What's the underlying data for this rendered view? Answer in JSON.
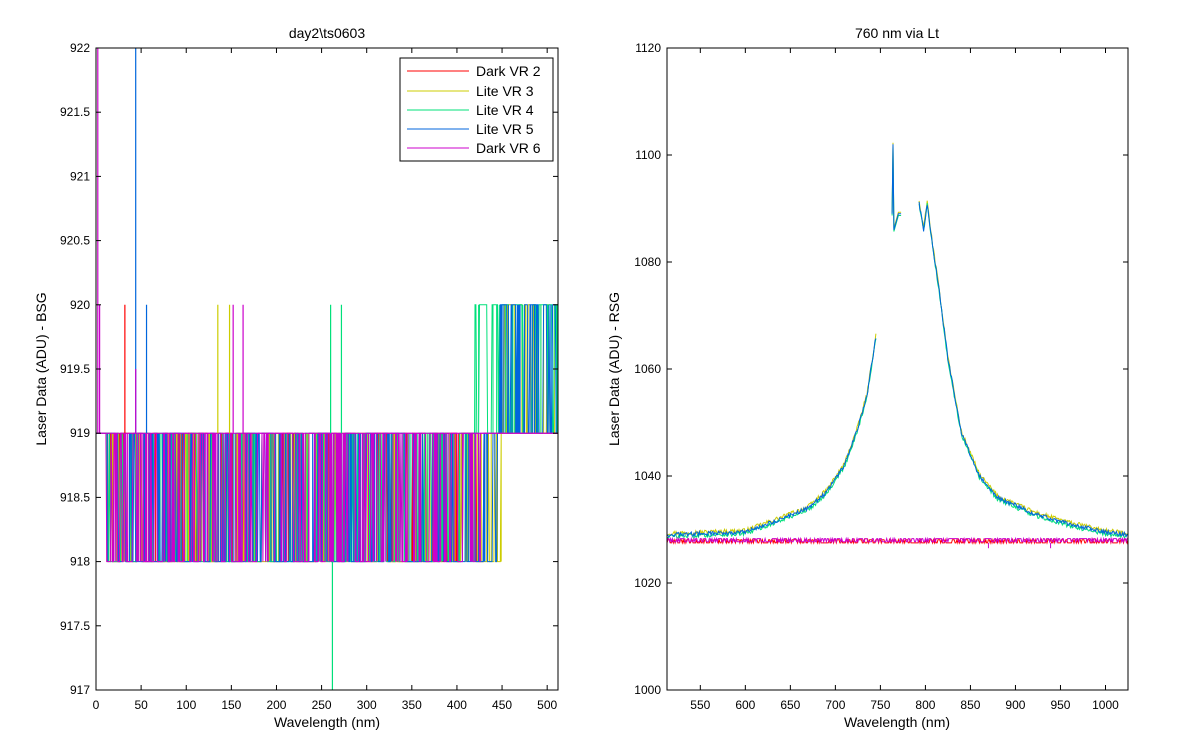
{
  "colors": {
    "dark_vr_2": "#ff0000",
    "lite_vr_3": "#cccc00",
    "lite_vr_4": "#00e07a",
    "lite_vr_5": "#0066dd",
    "dark_vr_6": "#cc00cc",
    "axes": "#000000",
    "background": "#ffffff"
  },
  "chart_data": [
    {
      "type": "line",
      "title": "day2\\ts0603",
      "xlabel": "Wavelength (nm)",
      "ylabel": "Laser Data (ADU) - BSG",
      "xlim": [
        0,
        512
      ],
      "ylim": [
        917,
        922
      ],
      "xticks": [
        "0",
        "50",
        "100",
        "150",
        "200",
        "250",
        "300",
        "350",
        "400",
        "450",
        "500"
      ],
      "yticks": [
        "917",
        "917.5",
        "918",
        "918.5",
        "919",
        "919.5",
        "920",
        "920.5",
        "921",
        "921.5",
        "922"
      ],
      "legend_position": "top-right",
      "series": [
        {
          "name": "Dark VR 2",
          "color_key": "dark_vr_2",
          "seed": 11,
          "min": 918,
          "max": 919,
          "flip_density": 0.18,
          "high_after": null
        },
        {
          "name": "Lite VR 3",
          "color_key": "lite_vr_3",
          "seed": 23,
          "min": 918,
          "max": 919,
          "flip_density": 0.22,
          "high_after": 450
        },
        {
          "name": "Lite VR 4",
          "color_key": "lite_vr_4",
          "seed": 37,
          "min": 918,
          "max": 919,
          "flip_density": 0.2,
          "high_after": 420
        },
        {
          "name": "Lite VR 5",
          "color_key": "lite_vr_5",
          "seed": 41,
          "min": 918,
          "max": 919,
          "flip_density": 0.2,
          "high_after": 445
        },
        {
          "name": "Dark VR 6",
          "color_key": "dark_vr_6",
          "seed": 53,
          "min": 918,
          "max": 919,
          "flip_density": 0.24,
          "high_after": null
        }
      ],
      "spikes": [
        {
          "series": "Lite VR 5",
          "x": 44,
          "y_from": 919,
          "y_to": 922
        },
        {
          "series": "Dark VR 6",
          "x": 44,
          "y_from": 919,
          "y_to": 919.5
        },
        {
          "series": "Lite VR 4",
          "x": 262,
          "y_from": 918,
          "y_to": 917
        },
        {
          "series": "Lite VR 4",
          "x": 260,
          "y_from": 919,
          "y_to": 920
        },
        {
          "series": "Lite VR 4",
          "x": 272,
          "y_from": 919,
          "y_to": 920
        },
        {
          "series": "Lite VR 3",
          "x": 135,
          "y_from": 919,
          "y_to": 920
        },
        {
          "series": "Lite VR 3",
          "x": 148,
          "y_from": 919,
          "y_to": 920
        },
        {
          "series": "Dark VR 6",
          "x": 152,
          "y_from": 919,
          "y_to": 920
        },
        {
          "series": "Dark VR 6",
          "x": 163,
          "y_from": 919,
          "y_to": 920
        },
        {
          "series": "Dark VR 2",
          "x": 32,
          "y_from": 919,
          "y_to": 920
        },
        {
          "series": "Lite VR 5",
          "x": 56,
          "y_from": 919,
          "y_to": 920
        },
        {
          "series": "Dark VR 6",
          "x": 2,
          "y_from": 919,
          "y_to": 922
        },
        {
          "series": "Dark VR 6",
          "x": 4,
          "y_from": 919,
          "y_to": 920
        }
      ]
    },
    {
      "type": "line",
      "title": "760 nm via Lt",
      "xlabel": "Wavelength (nm)",
      "ylabel": "Laser Data (ADU) - RSG",
      "xlim": [
        513,
        1025
      ],
      "ylim": [
        1000,
        1120
      ],
      "xticks": [
        "550",
        "600",
        "650",
        "700",
        "750",
        "800",
        "850",
        "900",
        "950",
        "1000"
      ],
      "yticks": [
        "1000",
        "1020",
        "1040",
        "1060",
        "1080",
        "1100",
        "1120"
      ],
      "series": [
        {
          "name": "Lite VR 3",
          "color_key": "lite_vr_3",
          "baseline": 1029,
          "offset": 0.3
        },
        {
          "name": "Lite VR 4",
          "color_key": "lite_vr_4",
          "baseline": 1029,
          "offset": -0.3
        },
        {
          "name": "Lite VR 5",
          "color_key": "lite_vr_5",
          "baseline": 1029,
          "offset": 0
        },
        {
          "name": "Dark VR 2",
          "color_key": "dark_vr_2",
          "baseline": 1027.5,
          "offset": 0
        },
        {
          "name": "Dark VR 6",
          "color_key": "dark_vr_6",
          "baseline": 1027.5,
          "offset": 0.2
        }
      ],
      "peak": {
        "left_rise": [
          [
            513,
            1029
          ],
          [
            600,
            1029.5
          ],
          [
            640,
            1032
          ],
          [
            670,
            1034
          ],
          [
            690,
            1037
          ],
          [
            710,
            1042
          ],
          [
            725,
            1049
          ],
          [
            735,
            1055
          ],
          [
            745,
            1066
          ]
        ],
        "upper_fragment": [
          [
            763,
            1089
          ],
          [
            764,
            1102
          ],
          [
            765,
            1086
          ],
          [
            770,
            1089
          ],
          [
            773,
            1089
          ]
        ],
        "right_fall": [
          [
            793,
            1091
          ],
          [
            798,
            1086
          ],
          [
            802,
            1091
          ],
          [
            808,
            1083
          ],
          [
            815,
            1075
          ],
          [
            825,
            1062
          ],
          [
            840,
            1048
          ],
          [
            860,
            1040
          ],
          [
            880,
            1036
          ],
          [
            920,
            1033
          ],
          [
            960,
            1031
          ],
          [
            1000,
            1029.5
          ],
          [
            1025,
            1029
          ]
        ]
      },
      "dark_dips": [
        [
          870,
          1026.5
        ],
        [
          939,
          1026.5
        ]
      ]
    }
  ]
}
